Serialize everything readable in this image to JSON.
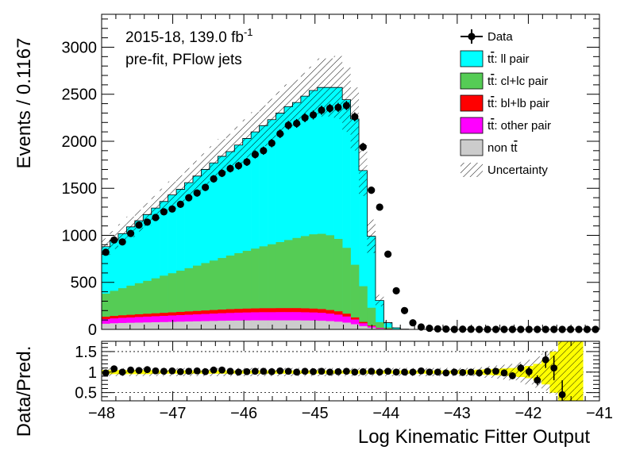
{
  "chart_data": {
    "type": "stacked-histogram",
    "annotations": {
      "lumi_prefix": "2015-18, 139.0 fb",
      "lumi_superscript": "-1",
      "line2": "pre-fit, PFlow jets"
    },
    "xlabel": "Log Kinematic Fitter Output",
    "ylabel": "Events / 0.1167",
    "ratio_ylabel": "Data/Pred.",
    "xlim": [
      -48,
      -41
    ],
    "ylim": [
      0,
      3350
    ],
    "ratio_ylim": [
      0.3,
      1.75
    ],
    "x_ticks": [
      "−48",
      "−47",
      "−46",
      "−45",
      "−44",
      "−43",
      "−42",
      "−41"
    ],
    "y_ticks": [
      "0",
      "500",
      "1000",
      "1500",
      "2000",
      "2500",
      "3000"
    ],
    "ratio_ticks": [
      "0.5",
      "1",
      "1.5"
    ],
    "bin_width": 0.1167,
    "x_start": -48,
    "legend": [
      {
        "label_pre": "t",
        "label_bar": "t",
        "label_post": ": ll pair",
        "style": "fill",
        "color": "#00ffff"
      },
      {
        "label_pre": "t",
        "label_bar": "t",
        "label_post": ": cl+lc pair",
        "style": "fill",
        "color": "#55cc55"
      },
      {
        "label_pre": "t",
        "label_bar": "t",
        "label_post": ": bl+lb pair",
        "style": "fill",
        "color": "#ff0000"
      },
      {
        "label_pre": "t",
        "label_bar": "t",
        "label_post": ": other pair",
        "style": "fill",
        "color": "#ff00ff"
      },
      {
        "label_pre": "non t",
        "label_bar": "t",
        "label_post": "",
        "style": "fill",
        "color": "#cccccc"
      },
      {
        "label_pre": "Uncertainty",
        "label_bar": "",
        "label_post": "",
        "style": "hatch",
        "color": "#000000"
      }
    ],
    "data_legend": "Data",
    "series": [
      {
        "name": "non tt",
        "color": "#cccccc",
        "values": [
          60,
          65,
          68,
          70,
          72,
          74,
          76,
          78,
          80,
          82,
          84,
          86,
          88,
          90,
          92,
          93,
          94,
          95,
          96,
          96,
          96,
          96,
          96,
          96,
          95,
          94,
          92,
          88,
          82,
          72,
          55,
          35,
          18,
          8,
          3,
          1,
          0,
          0,
          0,
          0,
          0,
          0,
          0,
          0,
          0,
          0,
          0,
          0,
          0,
          0,
          0,
          0,
          0,
          0,
          0,
          0,
          0,
          0,
          0,
          0
        ]
      },
      {
        "name": "tt other pair",
        "color": "#ff00ff",
        "values": [
          50,
          52,
          55,
          57,
          60,
          62,
          64,
          66,
          68,
          70,
          72,
          74,
          76,
          78,
          80,
          82,
          84,
          85,
          86,
          87,
          87,
          88,
          88,
          88,
          87,
          86,
          84,
          80,
          75,
          65,
          50,
          30,
          15,
          6,
          2,
          1,
          0,
          0,
          0,
          0,
          0,
          0,
          0,
          0,
          0,
          0,
          0,
          0,
          0,
          0,
          0,
          0,
          0,
          0,
          0,
          0,
          0,
          0,
          0,
          0
        ]
      },
      {
        "name": "tt bl+lb pair",
        "color": "#ff0000",
        "values": [
          25,
          26,
          27,
          28,
          29,
          30,
          31,
          32,
          33,
          34,
          35,
          36,
          37,
          38,
          39,
          40,
          40,
          41,
          41,
          42,
          42,
          42,
          42,
          42,
          42,
          41,
          40,
          38,
          35,
          30,
          22,
          14,
          7,
          3,
          1,
          0,
          0,
          0,
          0,
          0,
          0,
          0,
          0,
          0,
          0,
          0,
          0,
          0,
          0,
          0,
          0,
          0,
          0,
          0,
          0,
          0,
          0,
          0,
          0,
          0
        ]
      },
      {
        "name": "tt cl+lc pair",
        "color": "#55cc55",
        "values": [
          245,
          267,
          288,
          310,
          330,
          350,
          372,
          395,
          416,
          438,
          460,
          482,
          504,
          526,
          548,
          570,
          592,
          614,
          636,
          658,
          680,
          702,
          724,
          746,
          768,
          790,
          800,
          795,
          770,
          700,
          560,
          380,
          190,
          60,
          15,
          3,
          0,
          0,
          0,
          0,
          0,
          0,
          0,
          0,
          0,
          0,
          0,
          0,
          0,
          0,
          0,
          0,
          0,
          0,
          0,
          0,
          0,
          0,
          0,
          0
        ]
      },
      {
        "name": "tt ll pair",
        "color": "#00ffff",
        "values": [
          500,
          540,
          580,
          625,
          665,
          705,
          747,
          789,
          833,
          866,
          909,
          952,
          996,
          1038,
          1081,
          1105,
          1150,
          1195,
          1241,
          1283,
          1325,
          1372,
          1418,
          1440,
          1488,
          1529,
          1556,
          1571,
          1610,
          1575,
          1550,
          1230,
          760,
          230,
          50,
          12,
          3,
          1,
          0,
          0,
          0,
          0,
          0,
          0,
          0,
          0,
          0,
          0,
          0,
          0,
          0,
          0,
          0,
          0,
          0,
          0,
          0,
          0,
          0,
          0
        ]
      }
    ],
    "data_values": [
      820,
      950,
      930,
      1020,
      1110,
      1140,
      1190,
      1250,
      1280,
      1330,
      1400,
      1450,
      1510,
      1600,
      1660,
      1710,
      1740,
      1780,
      1860,
      1900,
      1980,
      2080,
      2170,
      2190,
      2250,
      2280,
      2330,
      2350,
      2360,
      2380,
      2260,
      1940,
      1480,
      1300,
      800,
      410,
      200,
      70,
      25,
      12,
      5,
      3,
      0,
      2,
      1,
      0,
      0,
      0,
      0,
      0,
      0,
      0,
      0,
      0,
      0,
      0,
      0,
      0,
      0,
      0
    ],
    "uncertainty_rel": [
      0.1,
      0.1,
      0.1,
      0.1,
      0.1,
      0.1,
      0.1,
      0.1,
      0.1,
      0.1,
      0.1,
      0.1,
      0.1,
      0.1,
      0.1,
      0.1,
      0.1,
      0.1,
      0.1,
      0.1,
      0.1,
      0.1,
      0.1,
      0.1,
      0.1,
      0.1,
      0.12,
      0.12,
      0.13,
      0.14,
      0.15,
      0.16,
      0.18,
      0.2,
      0.25,
      0.3,
      0.38,
      0.45,
      0.55,
      0.7,
      0.9,
      1.0,
      1.0,
      1.0,
      0,
      0,
      0,
      0,
      0,
      0,
      0,
      0,
      0,
      0,
      0,
      0,
      0,
      0,
      0,
      0
    ],
    "ratio_values": [
      0.98,
      1.08,
      1.0,
      1.05,
      1.04,
      1.06,
      1.03,
      1.02,
      1.03,
      1.01,
      1.02,
      1.03,
      1.01,
      1.05,
      1.05,
      1.02,
      1.0,
      1.01,
      1.02,
      1.02,
      1.01,
      1.03,
      1.02,
      1.0,
      1.02,
      1.01,
      1.02,
      1.0,
      1.01,
      1.02,
      1.0,
      1.01,
      1.02,
      1.0,
      1.02,
      1.0,
      1.0,
      1.0,
      1.03,
      1.0,
      1.0,
      0.98,
      1.0,
      0.99,
      1.0,
      0.98,
      1.02,
      1.02,
      0.98,
      0.91,
      1.1,
      1.01,
      0.8,
      1.3,
      1.1,
      0.45,
      null,
      null,
      null,
      null
    ],
    "ratio_errors": [
      0.02,
      0.02,
      0.02,
      0.02,
      0.02,
      0.02,
      0.02,
      0.02,
      0.02,
      0.02,
      0.02,
      0.02,
      0.02,
      0.02,
      0.02,
      0.02,
      0.02,
      0.02,
      0.02,
      0.02,
      0.02,
      0.02,
      0.02,
      0.02,
      0.02,
      0.02,
      0.02,
      0.02,
      0.02,
      0.02,
      0.02,
      0.02,
      0.02,
      0.02,
      0.02,
      0.02,
      0.02,
      0.02,
      0.02,
      0.02,
      0.02,
      0.02,
      0.02,
      0.02,
      0.02,
      0.03,
      0.04,
      0.05,
      0.06,
      0.08,
      0.1,
      0.12,
      0.12,
      0.2,
      0.3,
      0.35,
      0,
      0,
      0,
      0
    ],
    "ratio_unc_yellow": [
      0.05,
      0.05,
      0.05,
      0.05,
      0.05,
      0.05,
      0.04,
      0.04,
      0.04,
      0.04,
      0.04,
      0.04,
      0.04,
      0.04,
      0.04,
      0.04,
      0.04,
      0.04,
      0.04,
      0.04,
      0.04,
      0.04,
      0.04,
      0.04,
      0.04,
      0.04,
      0.04,
      0.04,
      0.04,
      0.04,
      0.04,
      0.04,
      0.04,
      0.04,
      0.04,
      0.04,
      0.04,
      0.04,
      0.04,
      0.04,
      0.04,
      0.04,
      0.04,
      0.05,
      0.05,
      0.06,
      0.07,
      0.08,
      0.09,
      0.1,
      0.12,
      0.15,
      0.2,
      0.3,
      0.5,
      1.0,
      1.0,
      1.0,
      0,
      0
    ],
    "ratio_unc_hatch": [
      0.1,
      0.1,
      0.1,
      0.1,
      0.1,
      0.1,
      0.1,
      0.1,
      0.1,
      0.1,
      0.1,
      0.1,
      0.1,
      0.1,
      0.1,
      0.1,
      0.1,
      0.1,
      0.1,
      0.1,
      0.1,
      0.1,
      0.1,
      0.1,
      0.1,
      0.1,
      0.1,
      0.1,
      0.1,
      0.1,
      0.1,
      0.1,
      0.1,
      0.1,
      0.1,
      0.1,
      0.1,
      0.1,
      0.1,
      0.1,
      0.1,
      0.1,
      0.1,
      0.1,
      0.1,
      0.12,
      0.14,
      0.16,
      0.18,
      0.2,
      0.25,
      0.3,
      0.38,
      0.45,
      0.55,
      1.0,
      1.0,
      1.0,
      0,
      0
    ]
  }
}
